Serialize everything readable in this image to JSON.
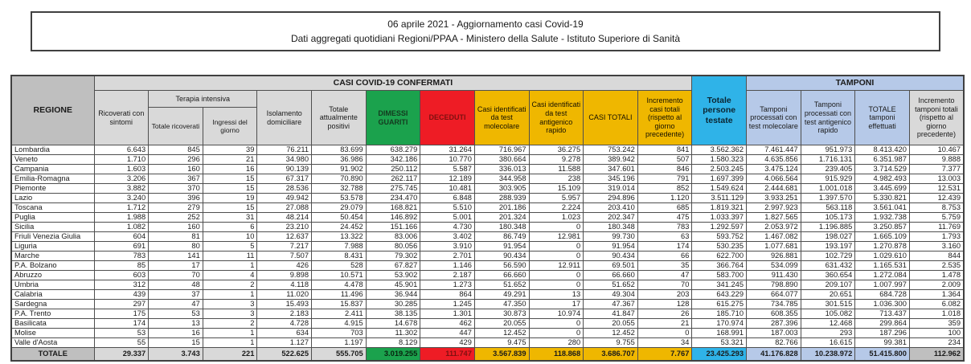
{
  "page": {
    "title_line1": "06 aprile 2021 - Aggiornamento casi Covid-19",
    "title_line2": "Dati aggregati quotidiani Regioni/PPAA - Ministero della Salute - Istituto Superiore di Sanità"
  },
  "colors": {
    "darkgray": "#BFBFBF",
    "lightgray": "#D9D9D9",
    "green": "#1BA24D",
    "red": "#EE1C25",
    "yellow": "#EFB700",
    "cyan": "#2FB3E8",
    "blue": "#B6C9E8"
  },
  "table": {
    "headers": {
      "regione": "REGIONE",
      "casi_confermati_band": "CASI COVID-19 CONFERMATI",
      "ricoverati_sintomi": "Ricoverati con sintomi",
      "terapia_intensiva": "Terapia intensiva",
      "totale_ricoverati": "Totale ricoverati",
      "ingressi_giorno": "Ingressi del giorno",
      "isolamento_domiciliare": "Isolamento domiciliare",
      "totale_attualmente_positivi": "Totale attualmente positivi",
      "dimessi_guariti": "DIMESSI GUARITI",
      "deceduti": "DECEDUTI",
      "casi_test_molecolare": "Casi identificati da test molecolare",
      "casi_test_antigenico": "Casi identificati da test antigenico rapido",
      "casi_totali": "CASI TOTALI",
      "incremento_casi": "Incremento casi totali (rispetto al giorno precedente)",
      "totale_persone_testate": "Totale persone testate",
      "tamponi_band": "TAMPONI",
      "tamponi_molecolare": "Tamponi processati con test molecolare",
      "tamponi_antigenico": "Tamponi processati con test antigenico rapido",
      "totale_tamponi": "TOTALE tamponi effettuati",
      "incremento_tamponi": "Incremento tamponi totali (rispetto al giorno precedente)"
    },
    "rows": [
      {
        "region": "Lombardia",
        "values": [
          "6.643",
          "845",
          "39",
          "76.211",
          "83.699",
          "638.279",
          "31.264",
          "716.967",
          "36.275",
          "753.242",
          "841",
          "3.562.362",
          "7.461.447",
          "951.973",
          "8.413.420",
          "10.467"
        ]
      },
      {
        "region": "Veneto",
        "values": [
          "1.710",
          "296",
          "21",
          "34.980",
          "36.986",
          "342.186",
          "10.770",
          "380.664",
          "9.278",
          "389.942",
          "507",
          "1.580.323",
          "4.635.856",
          "1.716.131",
          "6.351.987",
          "9.888"
        ]
      },
      {
        "region": "Campania",
        "values": [
          "1.603",
          "160",
          "16",
          "90.139",
          "91.902",
          "250.112",
          "5.587",
          "336.013",
          "11.588",
          "347.601",
          "846",
          "2.503.245",
          "3.475.124",
          "239.405",
          "3.714.529",
          "7.377"
        ]
      },
      {
        "region": "Emilia-Romagna",
        "values": [
          "3.206",
          "367",
          "15",
          "67.317",
          "70.890",
          "262.117",
          "12.189",
          "344.958",
          "238",
          "345.196",
          "791",
          "1.697.399",
          "4.066.564",
          "915.929",
          "4.982.493",
          "13.003"
        ]
      },
      {
        "region": "Piemonte",
        "values": [
          "3.882",
          "370",
          "15",
          "28.536",
          "32.788",
          "275.745",
          "10.481",
          "303.905",
          "15.109",
          "319.014",
          "852",
          "1.549.624",
          "2.444.681",
          "1.001.018",
          "3.445.699",
          "12.531"
        ]
      },
      {
        "region": "Lazio",
        "values": [
          "3.240",
          "396",
          "19",
          "49.942",
          "53.578",
          "234.470",
          "6.848",
          "288.939",
          "5.957",
          "294.896",
          "1.120",
          "3.511.129",
          "3.933.251",
          "1.397.570",
          "5.330.821",
          "12.439"
        ]
      },
      {
        "region": "Toscana",
        "values": [
          "1.712",
          "279",
          "15",
          "27.088",
          "29.079",
          "168.821",
          "5.510",
          "201.186",
          "2.224",
          "203.410",
          "685",
          "1.819.321",
          "2.997.923",
          "563.118",
          "3.561.041",
          "8.753"
        ]
      },
      {
        "region": "Puglia",
        "values": [
          "1.988",
          "252",
          "31",
          "48.214",
          "50.454",
          "146.892",
          "5.001",
          "201.324",
          "1.023",
          "202.347",
          "475",
          "1.033.397",
          "1.827.565",
          "105.173",
          "1.932.738",
          "5.759"
        ]
      },
      {
        "region": "Sicilia",
        "values": [
          "1.082",
          "160",
          "6",
          "23.210",
          "24.452",
          "151.166",
          "4.730",
          "180.348",
          "0",
          "180.348",
          "783",
          "1.292.597",
          "2.053.972",
          "1.196.885",
          "3.250.857",
          "11.769"
        ]
      },
      {
        "region": "Friuli Venezia Giulia",
        "values": [
          "604",
          "81",
          "10",
          "12.637",
          "13.322",
          "83.006",
          "3.402",
          "86.749",
          "12.981",
          "99.730",
          "63",
          "593.752",
          "1.467.082",
          "198.027",
          "1.665.109",
          "1.793"
        ]
      },
      {
        "region": "Liguria",
        "values": [
          "691",
          "80",
          "5",
          "7.217",
          "7.988",
          "80.056",
          "3.910",
          "91.954",
          "0",
          "91.954",
          "174",
          "530.235",
          "1.077.681",
          "193.197",
          "1.270.878",
          "3.160"
        ]
      },
      {
        "region": "Marche",
        "values": [
          "783",
          "141",
          "11",
          "7.507",
          "8.431",
          "79.302",
          "2.701",
          "90.434",
          "0",
          "90.434",
          "66",
          "622.700",
          "926.881",
          "102.729",
          "1.029.610",
          "844"
        ]
      },
      {
        "region": "P.A. Bolzano",
        "values": [
          "85",
          "17",
          "1",
          "426",
          "528",
          "67.827",
          "1.146",
          "56.590",
          "12.911",
          "69.501",
          "35",
          "366.764",
          "534.099",
          "631.432",
          "1.165.531",
          "2.535"
        ]
      },
      {
        "region": "Abruzzo",
        "values": [
          "603",
          "70",
          "4",
          "9.898",
          "10.571",
          "53.902",
          "2.187",
          "66.660",
          "0",
          "66.660",
          "47",
          "583.700",
          "911.430",
          "360.654",
          "1.272.084",
          "1.478"
        ]
      },
      {
        "region": "Umbria",
        "values": [
          "312",
          "48",
          "2",
          "4.118",
          "4.478",
          "45.901",
          "1.273",
          "51.652",
          "0",
          "51.652",
          "70",
          "341.245",
          "798.890",
          "209.107",
          "1.007.997",
          "2.009"
        ]
      },
      {
        "region": "Calabria",
        "values": [
          "439",
          "37",
          "1",
          "11.020",
          "11.496",
          "36.944",
          "864",
          "49.291",
          "13",
          "49.304",
          "203",
          "643.229",
          "664.077",
          "20.651",
          "684.728",
          "1.364"
        ]
      },
      {
        "region": "Sardegna",
        "values": [
          "297",
          "47",
          "3",
          "15.493",
          "15.837",
          "30.285",
          "1.245",
          "47.350",
          "17",
          "47.367",
          "128",
          "615.275",
          "734.785",
          "301.515",
          "1.036.300",
          "6.082"
        ]
      },
      {
        "region": "P.A. Trento",
        "values": [
          "175",
          "53",
          "3",
          "2.183",
          "2.411",
          "38.135",
          "1.301",
          "30.873",
          "10.974",
          "41.847",
          "26",
          "185.710",
          "608.355",
          "105.082",
          "713.437",
          "1.018"
        ]
      },
      {
        "region": "Basilicata",
        "values": [
          "174",
          "13",
          "2",
          "4.728",
          "4.915",
          "14.678",
          "462",
          "20.055",
          "0",
          "20.055",
          "21",
          "170.974",
          "287.396",
          "12.468",
          "299.864",
          "359"
        ]
      },
      {
        "region": "Molise",
        "values": [
          "53",
          "16",
          "1",
          "634",
          "703",
          "11.302",
          "447",
          "12.452",
          "0",
          "12.452",
          "0",
          "168.991",
          "187.003",
          "293",
          "187.296",
          "100"
        ]
      },
      {
        "region": "Valle d'Aosta",
        "values": [
          "55",
          "15",
          "1",
          "1.127",
          "1.197",
          "8.129",
          "429",
          "9.475",
          "280",
          "9.755",
          "34",
          "53.321",
          "82.766",
          "16.615",
          "99.381",
          "234"
        ]
      }
    ],
    "totals": {
      "label": "TOTALE",
      "values": [
        "29.337",
        "3.743",
        "221",
        "522.625",
        "555.705",
        "3.019.255",
        "111.747",
        "3.567.839",
        "118.868",
        "3.686.707",
        "7.767",
        "23.425.293",
        "41.176.828",
        "10.238.972",
        "51.415.800",
        "112.962"
      ]
    }
  }
}
